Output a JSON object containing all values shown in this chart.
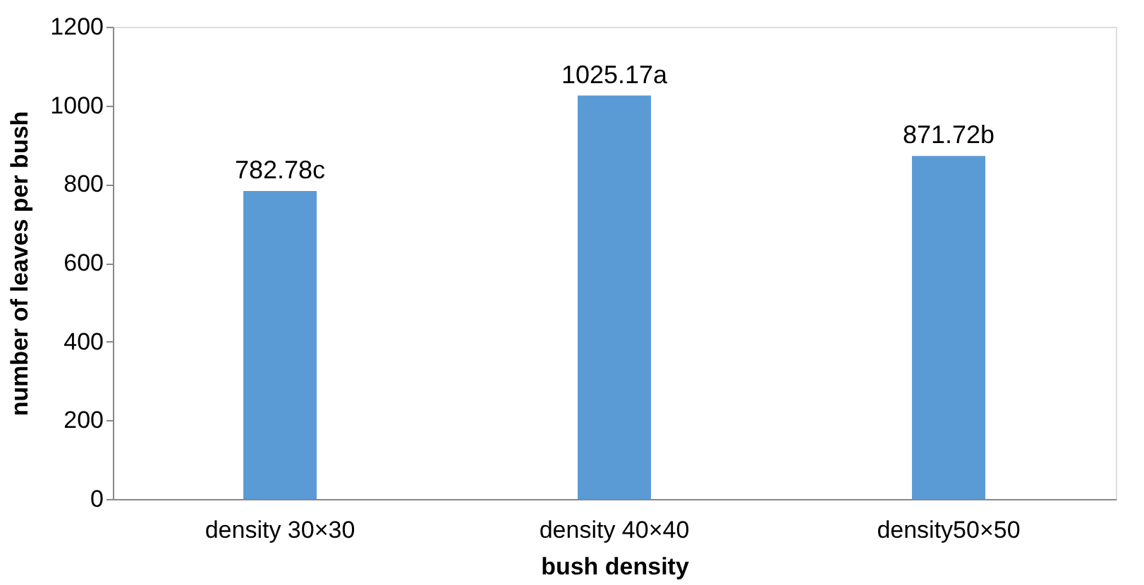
{
  "chart_data": {
    "type": "bar",
    "xlabel": "bush density",
    "ylabel": "number of leaves per bush",
    "categories": [
      "density 30×30",
      "density 40×40",
      "density50×50"
    ],
    "values": [
      782.78,
      1025.17,
      871.72
    ],
    "value_labels": [
      "782.78c",
      "1025.17a",
      "871.72b"
    ],
    "color": "#5b9bd5",
    "ylim": [
      0,
      1200
    ],
    "yticks": [
      0,
      200,
      400,
      600,
      800,
      1000,
      1200
    ],
    "grid": false
  }
}
